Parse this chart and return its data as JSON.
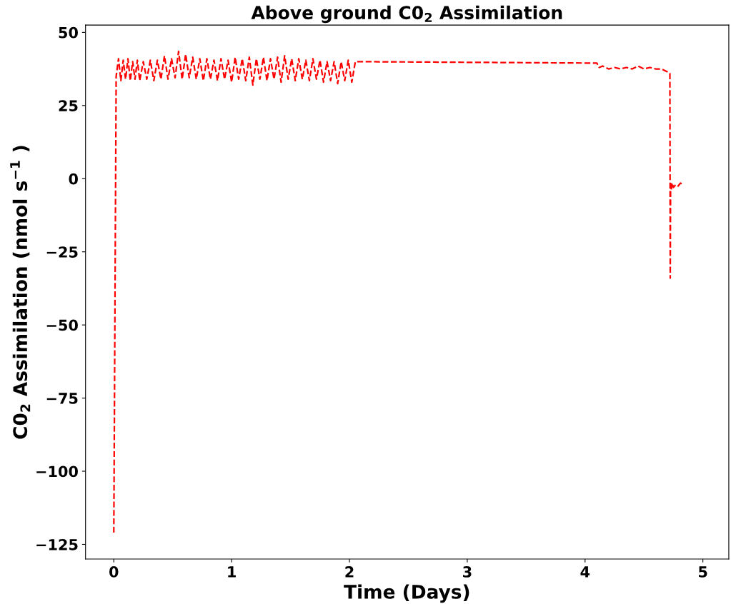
{
  "chart_data": {
    "type": "line",
    "title": "Above ground C0$_{2}$ Assimilation",
    "xlabel": "Time (Days)",
    "ylabel": "C0$_{2}$ Assimilation (nmol s$^{−1}$ )",
    "xlim": [
      -0.24,
      5.22
    ],
    "ylim": [
      -130,
      52.5
    ],
    "xticks": [
      0,
      1,
      2,
      3,
      4,
      5
    ],
    "yticks": [
      {
        "value": -125,
        "label": "−125"
      },
      {
        "value": -100,
        "label": "−100"
      },
      {
        "value": -75,
        "label": "−75"
      },
      {
        "value": -50,
        "label": "−50"
      },
      {
        "value": -25,
        "label": "−25"
      },
      0,
      25,
      50
    ],
    "grid": false,
    "marker": "none",
    "line_style": "dashed",
    "series": [
      {
        "color": "#ff0000",
        "x": [
          0,
          0.02,
          0.04,
          0.06,
          0.08,
          0.1,
          0.12,
          0.14,
          0.16,
          0.18,
          0.2,
          0.22,
          0.25,
          0.28,
          0.31,
          0.34,
          0.37,
          0.4,
          0.43,
          0.46,
          0.49,
          0.52,
          0.55,
          0.58,
          0.61,
          0.64,
          0.67,
          0.7,
          0.73,
          0.76,
          0.79,
          0.82,
          0.85,
          0.88,
          0.91,
          0.94,
          0.97,
          1.0,
          1.03,
          1.06,
          1.09,
          1.12,
          1.15,
          1.18,
          1.21,
          1.24,
          1.27,
          1.3,
          1.33,
          1.36,
          1.39,
          1.42,
          1.45,
          1.48,
          1.51,
          1.54,
          1.57,
          1.6,
          1.63,
          1.66,
          1.69,
          1.72,
          1.75,
          1.78,
          1.81,
          1.84,
          1.87,
          1.9,
          1.93,
          1.96,
          1.99,
          2.02,
          2.05,
          2.07,
          4.1,
          4.12,
          4.15,
          4.2,
          4.25,
          4.3,
          4.35,
          4.4,
          4.45,
          4.5,
          4.55,
          4.6,
          4.65,
          4.7,
          4.72,
          4.723,
          4.726,
          4.73,
          4.74,
          4.75,
          4.77,
          4.79,
          4.81,
          4.83
        ],
        "values": [
          -121,
          35,
          41,
          33.5,
          40.5,
          34,
          41,
          33.5,
          40,
          34,
          40.5,
          33.5,
          40,
          34,
          40.5,
          33.5,
          40.5,
          34,
          42,
          34,
          41,
          34.5,
          43.5,
          34,
          42.5,
          34.5,
          41.5,
          34,
          41,
          33.5,
          41,
          34,
          40.5,
          33.5,
          41,
          34,
          40.5,
          33,
          41.5,
          34,
          41,
          33.5,
          41.5,
          32,
          41,
          34,
          41.5,
          33.5,
          41,
          34,
          41.5,
          33,
          42,
          34,
          41,
          33.5,
          41,
          34,
          40.5,
          33.5,
          41,
          34,
          40.5,
          33,
          40,
          33.5,
          40,
          32.5,
          40,
          33.5,
          40.5,
          33,
          40,
          40,
          39.5,
          38,
          38.5,
          37.5,
          38,
          37.5,
          38,
          37.5,
          38.5,
          37.5,
          38,
          37.5,
          37.5,
          36.5,
          36,
          -34,
          -1,
          -4,
          -1.5,
          -3,
          -2,
          -2.5,
          -1.5,
          -2
        ]
      }
    ]
  }
}
